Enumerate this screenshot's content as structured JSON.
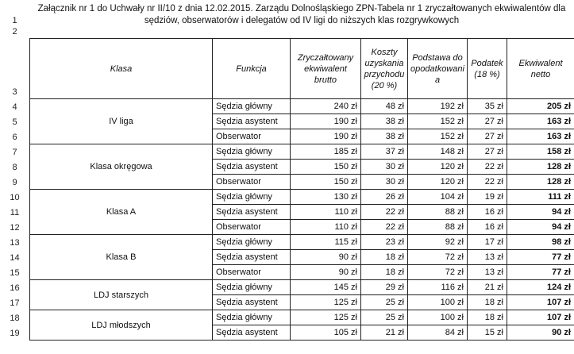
{
  "title_line1": "Załącznik nr 1 do Uchwały nr II/10 z dnia 12.02.2015. Zarządu Dolnośląskiego ZPN-Tabela nr 1 zryczałtowanych ekwiwalentów dla",
  "title_line2": "sędziów, obserwatorów i delegatów od IV ligi do niższych klas rozgrywkowych",
  "row_numbers": [
    "1",
    "2",
    "3",
    "4",
    "5",
    "6",
    "7",
    "8",
    "9",
    "10",
    "11",
    "12",
    "13",
    "14",
    "15",
    "16",
    "17",
    "18",
    "19"
  ],
  "headers": {
    "klasa": "Klasa",
    "funkcja": "Funkcja",
    "brutto": "Zryczałtowany ekwiwalent brutto",
    "koszty": "Koszty uzyskania przychodu (20 %)",
    "podstawa": "Podstawa do opodatkowani a",
    "podatek": "Podatek (18 %)",
    "netto": "Ekwiwalent netto"
  },
  "groups": [
    {
      "klasa": "IV liga",
      "rows": [
        {
          "funkcja": "Sędzia główny",
          "brutto": "240 zł",
          "koszty": "48 zł",
          "podstawa": "192 zł",
          "podatek": "35 zł",
          "netto": "205 zł"
        },
        {
          "funkcja": "Sędzia asystent",
          "brutto": "190 zł",
          "koszty": "38 zł",
          "podstawa": "152 zł",
          "podatek": "27 zł",
          "netto": "163 zł"
        },
        {
          "funkcja": "Obserwator",
          "brutto": "190 zł",
          "koszty": "38 zł",
          "podstawa": "152 zł",
          "podatek": "27 zł",
          "netto": "163 zł"
        }
      ]
    },
    {
      "klasa": "Klasa okręgowa",
      "rows": [
        {
          "funkcja": "Sędzia główny",
          "brutto": "185 zł",
          "koszty": "37 zł",
          "podstawa": "148 zł",
          "podatek": "27 zł",
          "netto": "158 zł"
        },
        {
          "funkcja": "Sędzia asystent",
          "brutto": "150 zł",
          "koszty": "30 zł",
          "podstawa": "120 zł",
          "podatek": "22 zł",
          "netto": "128 zł"
        },
        {
          "funkcja": "Obserwator",
          "brutto": "150 zł",
          "koszty": "30 zł",
          "podstawa": "120 zł",
          "podatek": "22 zł",
          "netto": "128 zł"
        }
      ]
    },
    {
      "klasa": "Klasa A",
      "rows": [
        {
          "funkcja": "Sędzia główny",
          "brutto": "130 zł",
          "koszty": "26 zł",
          "podstawa": "104 zł",
          "podatek": "19 zł",
          "netto": "111 zł"
        },
        {
          "funkcja": "Sędzia asystent",
          "brutto": "110 zł",
          "koszty": "22 zł",
          "podstawa": "88 zł",
          "podatek": "16 zł",
          "netto": "94 zł"
        },
        {
          "funkcja": "Obserwator",
          "brutto": "110 zł",
          "koszty": "22 zł",
          "podstawa": "88 zł",
          "podatek": "16 zł",
          "netto": "94 zł"
        }
      ]
    },
    {
      "klasa": "Klasa B",
      "rows": [
        {
          "funkcja": "Sędzia główny",
          "brutto": "115 zł",
          "koszty": "23 zł",
          "podstawa": "92 zł",
          "podatek": "17 zł",
          "netto": "98 zł"
        },
        {
          "funkcja": "Sędzia asystent",
          "brutto": "90 zł",
          "koszty": "18 zł",
          "podstawa": "72 zł",
          "podatek": "13 zł",
          "netto": "77 zł"
        },
        {
          "funkcja": "Obserwator",
          "brutto": "90 zł",
          "koszty": "18 zł",
          "podstawa": "72 zł",
          "podatek": "13 zł",
          "netto": "77 zł"
        }
      ]
    },
    {
      "klasa": "LDJ starszych",
      "rows": [
        {
          "funkcja": "Sędzia główny",
          "brutto": "145 zł",
          "koszty": "29 zł",
          "podstawa": "116 zł",
          "podatek": "21 zł",
          "netto": "124 zł"
        },
        {
          "funkcja": "Sędzia asystent",
          "brutto": "125 zł",
          "koszty": "25 zł",
          "podstawa": "100 zł",
          "podatek": "18 zł",
          "netto": "107 zł"
        }
      ]
    },
    {
      "klasa": "LDJ młodszych",
      "rows": [
        {
          "funkcja": "Sędzia główny",
          "brutto": "125 zł",
          "koszty": "25 zł",
          "podstawa": "100 zł",
          "podatek": "18 zł",
          "netto": "107 zł"
        },
        {
          "funkcja": "Sędzia asystent",
          "brutto": "105 zł",
          "koszty": "21 zł",
          "podstawa": "84 zł",
          "podatek": "15 zł",
          "netto": "90 zł"
        }
      ]
    }
  ]
}
